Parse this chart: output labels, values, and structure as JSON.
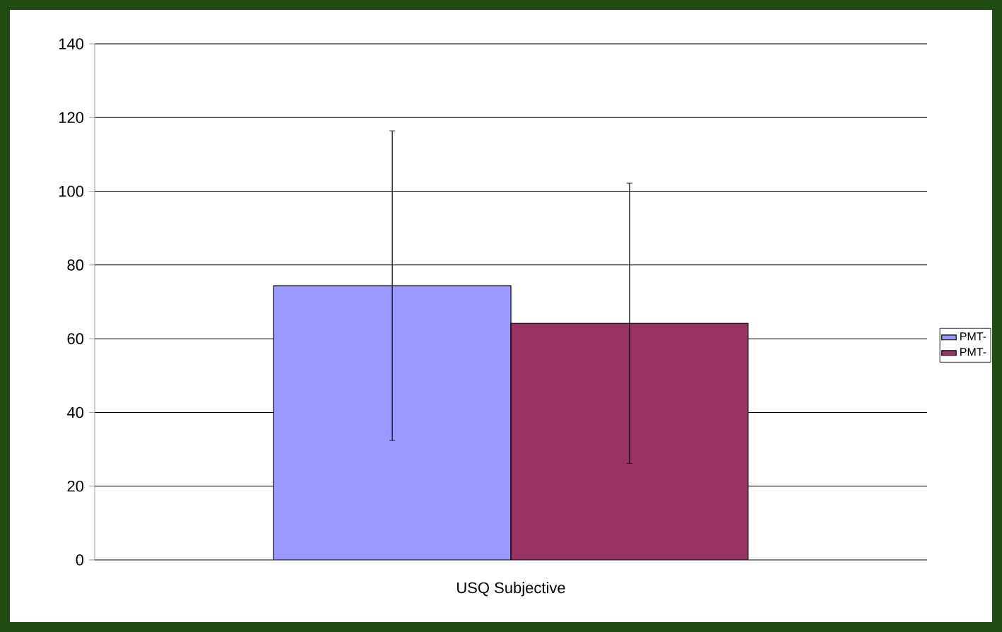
{
  "chart_data": {
    "type": "bar",
    "categories": [
      "USQ Subjective"
    ],
    "series": [
      {
        "name": "PMT-",
        "color": "#9999ff",
        "values": [
          74.4
        ],
        "errors": [
          42
        ]
      },
      {
        "name": "PMT-",
        "color": "#993366",
        "values": [
          64.2
        ],
        "errors": [
          38
        ]
      }
    ],
    "ylim": [
      0,
      140
    ],
    "yticks": [
      0,
      20,
      40,
      60,
      80,
      100,
      120,
      140
    ],
    "grid": "y",
    "legend": "right"
  }
}
